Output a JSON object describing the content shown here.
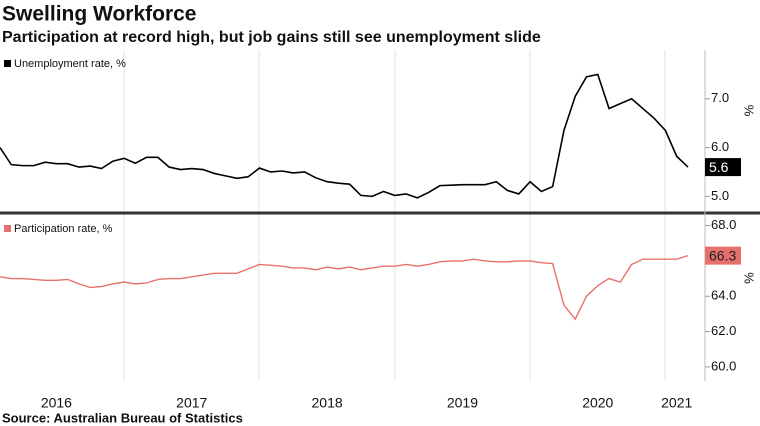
{
  "title": "Swelling Workforce",
  "subtitle": "Participation at record high, but job gains still see unemployment slide",
  "source": "Source: Australian Bureau of Statistics",
  "chart_data": [
    {
      "type": "line",
      "y_label": "%",
      "ylim": [
        4.7,
        8.0
      ],
      "yticks": [
        {
          "value": 5,
          "label": "5.0"
        },
        {
          "value": 6,
          "label": "6.0"
        },
        {
          "value": 7,
          "label": "7.0"
        }
      ],
      "series": [
        {
          "name": "Unemployment rate, %",
          "color": "#000000",
          "values": [
            6.0,
            5.65,
            5.63,
            5.63,
            5.7,
            5.67,
            5.67,
            5.6,
            5.62,
            5.57,
            5.72,
            5.78,
            5.68,
            5.8,
            5.8,
            5.6,
            5.55,
            5.57,
            5.55,
            5.47,
            5.42,
            5.37,
            5.4,
            5.58,
            5.5,
            5.52,
            5.48,
            5.5,
            5.38,
            5.3,
            5.27,
            5.25,
            5.02,
            5.0,
            5.1,
            5.02,
            5.05,
            4.97,
            5.08,
            5.22,
            5.23,
            5.24,
            5.24,
            5.24,
            5.3,
            5.12,
            5.05,
            5.3,
            5.1,
            5.2,
            6.35,
            7.05,
            7.45,
            7.5,
            6.8,
            6.9,
            7.0,
            6.8,
            6.6,
            6.35,
            5.82,
            5.6
          ]
        }
      ]
    },
    {
      "type": "line",
      "y_label": "%",
      "ylim": [
        59.2,
        68.6
      ],
      "yticks": [
        {
          "value": 60,
          "label": "60.0"
        },
        {
          "value": 62,
          "label": "62.0"
        },
        {
          "value": 64,
          "label": "64.0"
        },
        {
          "value": 66,
          "label": "66.0"
        },
        {
          "value": 68,
          "label": "68.0"
        }
      ],
      "categories": [
        null,
        null,
        null,
        null,
        null,
        "2016",
        null,
        null,
        null,
        null,
        null,
        null,
        null,
        null,
        null,
        null,
        null,
        "2017",
        null,
        null,
        null,
        null,
        null,
        null,
        null,
        null,
        null,
        null,
        null,
        "2018",
        null,
        null,
        null,
        null,
        null,
        null,
        null,
        null,
        null,
        null,
        null,
        "2019",
        null,
        null,
        null,
        null,
        null,
        null,
        null,
        null,
        null,
        null,
        null,
        "2020",
        null,
        null,
        null,
        null,
        null,
        null,
        "2021",
        null
      ],
      "series": [
        {
          "name": "Participation rate, %",
          "color": "#e8706c",
          "values": [
            65.1,
            65.0,
            65.0,
            64.95,
            64.9,
            64.9,
            64.95,
            64.7,
            64.5,
            64.55,
            64.7,
            64.8,
            64.7,
            64.75,
            64.95,
            65.0,
            65.0,
            65.1,
            65.2,
            65.3,
            65.3,
            65.3,
            65.55,
            65.8,
            65.75,
            65.7,
            65.6,
            65.6,
            65.5,
            65.65,
            65.55,
            65.65,
            65.5,
            65.6,
            65.7,
            65.7,
            65.8,
            65.7,
            65.8,
            65.95,
            66.0,
            66.0,
            66.1,
            66.0,
            65.95,
            65.95,
            66.0,
            66.0,
            65.9,
            65.85,
            63.5,
            62.7,
            64.0,
            64.6,
            65.0,
            64.8,
            65.8,
            66.1,
            66.1,
            66.1,
            66.1,
            66.3
          ]
        }
      ]
    }
  ]
}
